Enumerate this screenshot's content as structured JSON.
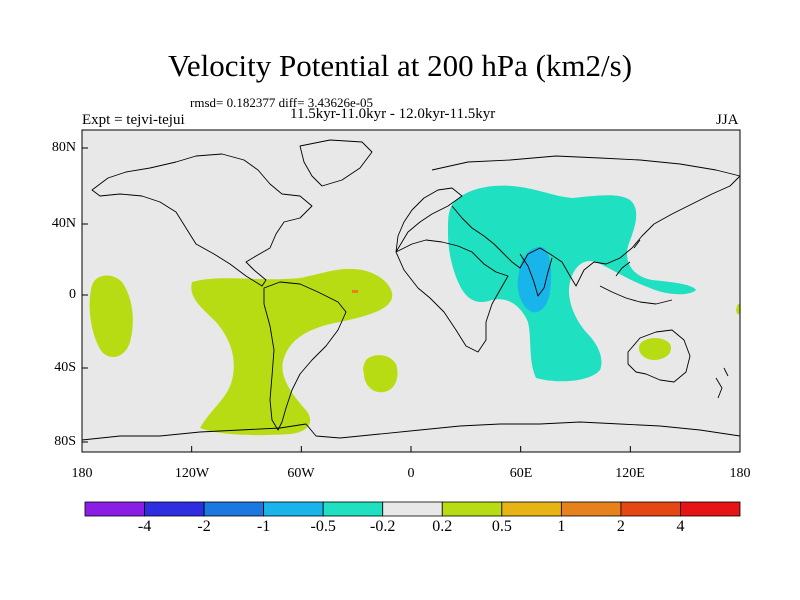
{
  "title": "Velocity Potential at 200 hPa (km2/s)",
  "stats": "rmsd= 0.182377 diff= 3.43626e-05",
  "period": "11.5kyr-11.0kyr - 12.0kyr-11.5kyr",
  "experiment": "Expt = tejvi-tejui",
  "season": "JJA",
  "map": {
    "lat_labels": [
      "80N",
      "40N",
      "0",
      "40S",
      "80S"
    ],
    "lon_labels": [
      "180",
      "120W",
      "60W",
      "0",
      "60E",
      "120E",
      "180"
    ]
  },
  "colorbar": {
    "colors": [
      "#8a1ee6",
      "#2e2ee0",
      "#1a78e0",
      "#19b4ea",
      "#1fe0c0",
      "#e8e8e8",
      "#b8dc14",
      "#e6b414",
      "#e6821e",
      "#e64614",
      "#e61414"
    ],
    "labels": [
      "-4",
      "-2",
      "-1",
      "-0.5",
      "-0.2",
      "0.2",
      "0.5",
      "1",
      "2",
      "4"
    ]
  },
  "field_colors": {
    "background": "#e8e8e8",
    "positive": "#b8dc14",
    "negative": "#1fe0c0",
    "strong_negative": "#19b4ea",
    "strong_positive": "#e6821e"
  }
}
